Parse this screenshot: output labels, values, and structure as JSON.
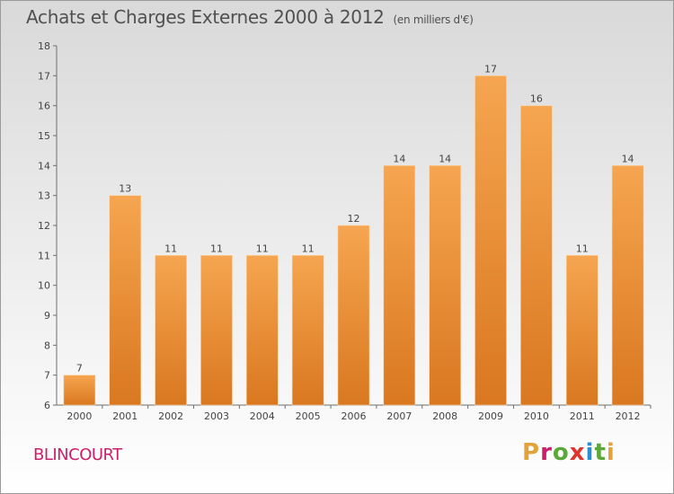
{
  "title": "Achats et Charges Externes 2000 à 2012",
  "subtitle": "(en milliers d'€)",
  "place": "BLINCOURT",
  "logo": "Proxiti",
  "colors": {
    "bar_light": "#f6a550",
    "bar_dark": "#d97820",
    "place": "#cc1f6b",
    "logo_letters": [
      "#e2a33b",
      "#cc1f6b",
      "#5aa83a",
      "#e0342f",
      "#2a8fd0",
      "#5aa83a",
      "#e2a33b"
    ]
  },
  "chart_data": {
    "type": "bar",
    "categories": [
      "2000",
      "2001",
      "2002",
      "2003",
      "2004",
      "2005",
      "2006",
      "2007",
      "2008",
      "2009",
      "2010",
      "2011",
      "2012"
    ],
    "values": [
      7,
      13,
      11,
      11,
      11,
      11,
      12,
      14,
      14,
      17,
      16,
      11,
      14
    ],
    "data_labels": [
      "7",
      "13",
      "11",
      "11",
      "11",
      "11",
      "12",
      "14",
      "14",
      "17",
      "16",
      "11",
      "14"
    ],
    "title": "Achats et Charges Externes 2000 à 2012",
    "subtitle": "(en milliers d'€)",
    "ylim": [
      6,
      18
    ],
    "yticks": [
      6,
      7,
      8,
      9,
      10,
      11,
      12,
      13,
      14,
      15,
      16,
      17,
      18
    ],
    "grid": false
  }
}
